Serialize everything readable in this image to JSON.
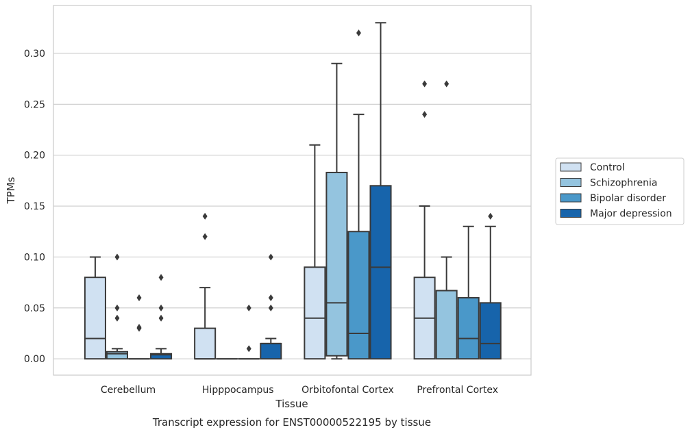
{
  "chart_data": {
    "type": "boxplot",
    "caption": "Transcript expression for ENST00000522195 by tissue",
    "xlabel": "Tissue",
    "ylabel": "TPMs",
    "ylim": [
      -0.016,
      0.347
    ],
    "yticks": [
      "0.00",
      "0.05",
      "0.10",
      "0.15",
      "0.20",
      "0.25",
      "0.30"
    ],
    "grid": true,
    "legend_position": "right",
    "categories": [
      "Cerebellum",
      "Hipppocampus",
      "Orbitofontal Cortex",
      "Prefrontal Cortex"
    ],
    "series": [
      {
        "name": "Control",
        "color": "#d0e1f2",
        "boxes": [
          {
            "whisker_low": 0,
            "q1": 0,
            "median": 0.02,
            "q3": 0.08,
            "whisker_high": 0.1,
            "outliers": []
          },
          {
            "whisker_low": 0,
            "q1": 0,
            "median": 0,
            "q3": 0.03,
            "whisker_high": 0.07,
            "outliers": [
              0.12,
              0.14
            ]
          },
          {
            "whisker_low": 0,
            "q1": 0,
            "median": 0.04,
            "q3": 0.09,
            "whisker_high": 0.21,
            "outliers": []
          },
          {
            "whisker_low": 0,
            "q1": 0,
            "median": 0.04,
            "q3": 0.08,
            "whisker_high": 0.15,
            "outliers": [
              0.24,
              0.27
            ]
          }
        ]
      },
      {
        "name": "Schizophrenia",
        "color": "#94c4df",
        "boxes": [
          {
            "whisker_low": 0,
            "q1": 0,
            "median": 0.005,
            "q3": 0.007,
            "whisker_high": 0.01,
            "outliers": [
              0.04,
              0.05,
              0.1
            ]
          },
          {
            "whisker_low": 0,
            "q1": 0,
            "median": 0,
            "q3": 0,
            "whisker_high": 0,
            "outliers": []
          },
          {
            "whisker_low": 0,
            "q1": 0.003,
            "median": 0.055,
            "q3": 0.183,
            "whisker_high": 0.29,
            "outliers": []
          },
          {
            "whisker_low": 0,
            "q1": 0,
            "median": 0.067,
            "q3": 0.067,
            "whisker_high": 0.1,
            "outliers": [
              0.27
            ]
          }
        ]
      },
      {
        "name": "Bipolar disorder",
        "color": "#4a98c9",
        "boxes": [
          {
            "whisker_low": 0,
            "q1": 0,
            "median": 0,
            "q3": 0,
            "whisker_high": 0,
            "outliers": [
              0.03,
              0.031,
              0.06
            ]
          },
          {
            "whisker_low": 0,
            "q1": 0,
            "median": 0,
            "q3": 0,
            "whisker_high": 0,
            "outliers": [
              0.01,
              0.05
            ]
          },
          {
            "whisker_low": 0,
            "q1": 0,
            "median": 0.025,
            "q3": 0.125,
            "whisker_high": 0.24,
            "outliers": [
              0.32
            ]
          },
          {
            "whisker_low": 0,
            "q1": 0,
            "median": 0.02,
            "q3": 0.06,
            "whisker_high": 0.13,
            "outliers": []
          }
        ]
      },
      {
        "name": "Major depression",
        "color": "#1764ab",
        "boxes": [
          {
            "whisker_low": 0,
            "q1": 0,
            "median": 0.004,
            "q3": 0.005,
            "whisker_high": 0.01,
            "outliers": [
              0.04,
              0.05,
              0.08
            ]
          },
          {
            "whisker_low": 0,
            "q1": 0,
            "median": 0.015,
            "q3": 0.015,
            "whisker_high": 0.02,
            "outliers": [
              0.05,
              0.06,
              0.1
            ]
          },
          {
            "whisker_low": 0,
            "q1": 0,
            "median": 0.09,
            "q3": 0.17,
            "whisker_high": 0.33,
            "outliers": []
          },
          {
            "whisker_low": 0,
            "q1": 0,
            "median": 0.015,
            "q3": 0.055,
            "whisker_high": 0.13,
            "outliers": [
              0.14
            ]
          }
        ]
      }
    ]
  }
}
